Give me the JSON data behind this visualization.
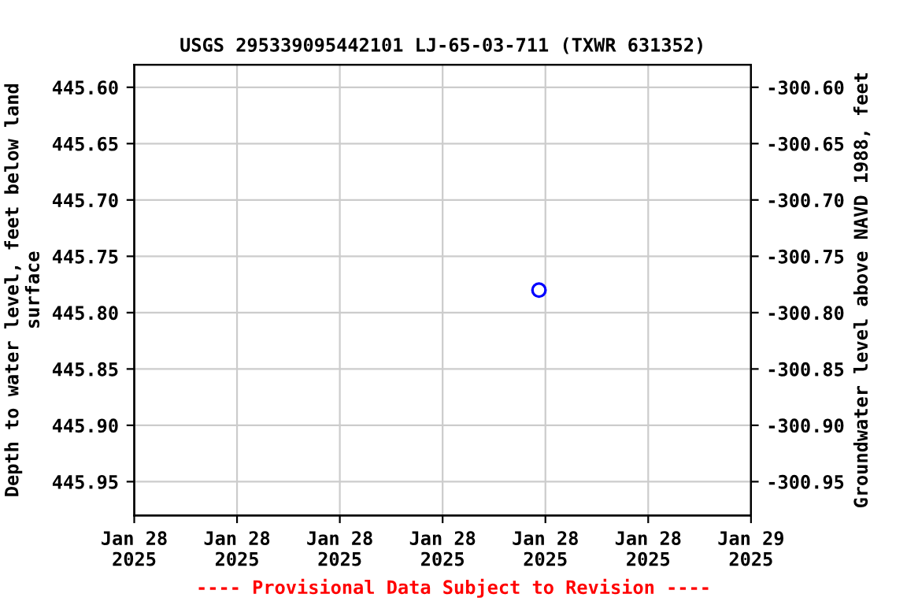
{
  "chart_data": {
    "type": "scatter",
    "title": "USGS 295339095442101 LJ-65-03-711 (TXWR 631352)",
    "ylabel": "Depth to water level, feet below land\nsurface",
    "y2label": "Groundwater level above NAVD 1988, feet",
    "x": [
      "2025-01-28T15:45"
    ],
    "series": [
      {
        "color": "#0000ff",
        "values": [
          445.78
        ]
      }
    ],
    "marker": "circle",
    "grid": true,
    "xlim": [
      "2025-01-28T00:00",
      "2025-01-29T00:00"
    ],
    "xticks": [
      {
        "value": "2025-01-28T00:00",
        "label": "Jan 28\n2025"
      },
      {
        "value": "2025-01-28T04:00",
        "label": "Jan 28\n2025"
      },
      {
        "value": "2025-01-28T08:00",
        "label": "Jan 28\n2025"
      },
      {
        "value": "2025-01-28T12:00",
        "label": "Jan 28\n2025"
      },
      {
        "value": "2025-01-28T16:00",
        "label": "Jan 28\n2025"
      },
      {
        "value": "2025-01-28T20:00",
        "label": "Jan 28\n2025"
      },
      {
        "value": "2025-01-29T00:00",
        "label": "Jan 29\n2025"
      }
    ],
    "ylim": [
      445.98,
      445.58
    ],
    "yticks": [
      {
        "value": 445.6,
        "label": "445.60"
      },
      {
        "value": 445.65,
        "label": "445.65"
      },
      {
        "value": 445.7,
        "label": "445.70"
      },
      {
        "value": 445.75,
        "label": "445.75"
      },
      {
        "value": 445.8,
        "label": "445.80"
      },
      {
        "value": 445.85,
        "label": "445.85"
      },
      {
        "value": 445.9,
        "label": "445.90"
      },
      {
        "value": 445.95,
        "label": "445.95"
      }
    ],
    "y2lim": [
      -300.98,
      -300.58
    ],
    "y2ticks": [
      {
        "value": -300.6,
        "label": "-300.60"
      },
      {
        "value": -300.65,
        "label": "-300.65"
      },
      {
        "value": -300.7,
        "label": "-300.70"
      },
      {
        "value": -300.75,
        "label": "-300.75"
      },
      {
        "value": -300.8,
        "label": "-300.80"
      },
      {
        "value": -300.85,
        "label": "-300.85"
      },
      {
        "value": -300.9,
        "label": "-300.90"
      },
      {
        "value": -300.95,
        "label": "-300.95"
      }
    ],
    "annotations": [
      "---- Provisional Data Subject to Revision ----"
    ]
  }
}
